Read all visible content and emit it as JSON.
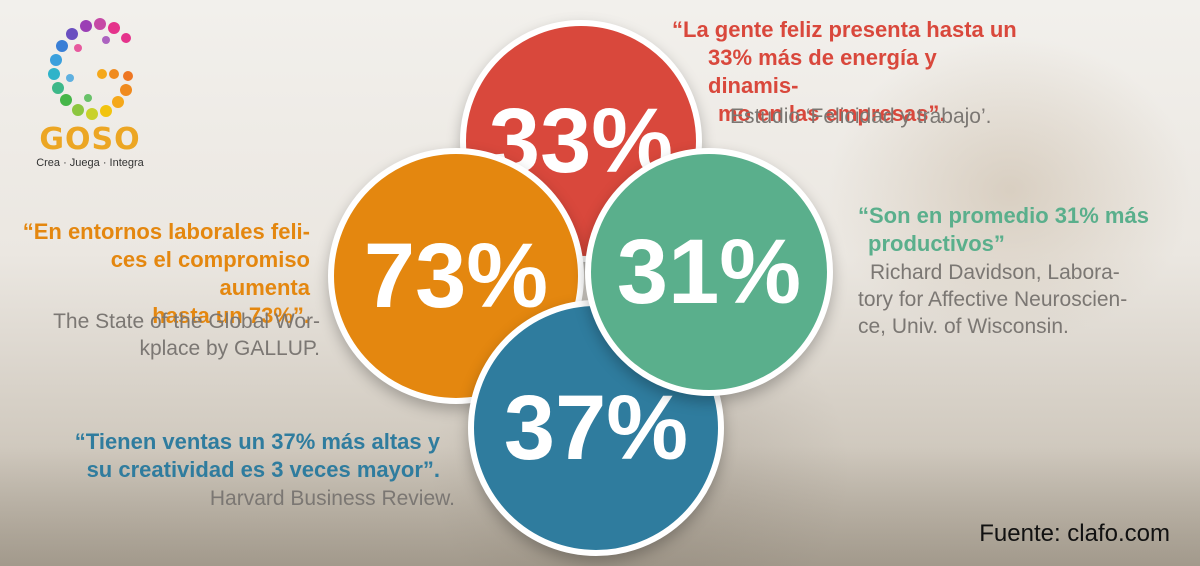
{
  "logo": {
    "name": "GOSO",
    "tagline": "Crea · Juega · Integra",
    "icon": "handprint-g-icon",
    "colors": [
      "#e5338b",
      "#9b3fb5",
      "#3aa0dd",
      "#46b649",
      "#f2c40f",
      "#f08a1d"
    ]
  },
  "stats": {
    "red": {
      "value": "33%",
      "color": "#d9483c"
    },
    "orange": {
      "value": "73%",
      "color": "#e4870f"
    },
    "green": {
      "value": "31%",
      "color": "#5aaf8c"
    },
    "blue": {
      "value": "37%",
      "color": "#2f7c9e"
    }
  },
  "quotes": {
    "red": {
      "lines": [
        "“La gente feliz presenta hasta un",
        "33% más de energía y dinamis-",
        "mo en las empresas”."
      ],
      "source": "Estudio ‘Felicidad y trabajo’."
    },
    "green": {
      "lines": [
        "“Son en promedio 31% más",
        "productivos”"
      ],
      "source_lines": [
        "Richard Davidson, Labora-",
        "tory for Affective Neuroscien-",
        "ce, Univ. of Wisconsin."
      ]
    },
    "orange": {
      "lines": [
        "“En entornos laborales feli-",
        "ces el compromiso aumenta",
        "hasta un 73%”."
      ],
      "source_lines": [
        "The State of the Global Wor-",
        "kplace by GALLUP."
      ]
    },
    "blue": {
      "lines": [
        "“Tienen ventas un 37% más altas y",
        "su creatividad es 3 veces mayor”."
      ],
      "source": "Harvard Business Review."
    }
  },
  "footer": {
    "source": "Fuente: clafo.com"
  }
}
